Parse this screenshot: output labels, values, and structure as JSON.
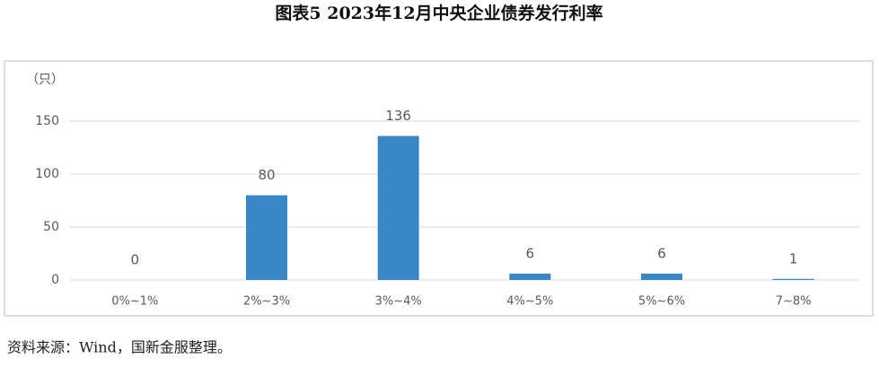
{
  "chart_data": {
    "type": "bar",
    "title": "图表5 2023年12月中央企业债券发行利率",
    "y_label": "（只）",
    "categories": [
      "0%~1%",
      "2%~3%",
      "3%~4%",
      "4%~5%",
      "5%~6%",
      "7~8%"
    ],
    "values": [
      0,
      80,
      136,
      6,
      6,
      1
    ],
    "color": "#3a87c8",
    "ylim": [
      0,
      150
    ],
    "yticks": [
      0,
      50,
      100,
      150
    ],
    "grid": true,
    "source": "资料来源：Wind，国新金服整理。"
  }
}
